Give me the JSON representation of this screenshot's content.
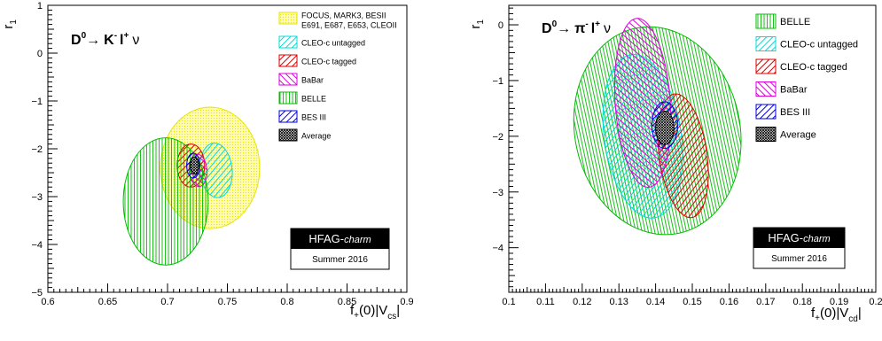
{
  "chart_data": [
    {
      "type": "contour",
      "title": "D⁰→ K⁻ l⁺ ν",
      "title_parts": {
        "d": "D",
        "d_sup": "0",
        "arrow": "→",
        "k": "K",
        "k_sup": "-",
        "l": "l",
        "l_sup": "+",
        "nu": "ν"
      },
      "xlabel": "f₊(0)|V_cs|",
      "xlabel_parts": {
        "main": "f",
        "sub": "+",
        "mid": "(0)|V",
        "sub2": "cs",
        "end": "|"
      },
      "ylabel": "r₁",
      "ylabel_parts": {
        "main": "r",
        "sub": "1"
      },
      "xlim": [
        0.6,
        0.9
      ],
      "ylim": [
        -5,
        1
      ],
      "xticks": [
        0.6,
        0.65,
        0.7,
        0.75,
        0.8,
        0.85,
        0.9
      ],
      "xtick_labels": [
        "0.6",
        "0.65",
        "0.7",
        "0.75",
        "0.8",
        "0.85",
        "0.9"
      ],
      "yticks": [
        -5,
        -4,
        -3,
        -2,
        -1,
        0,
        1
      ],
      "ytick_labels": [
        "−5",
        "−4",
        "−3",
        "−2",
        "−1",
        "0",
        "1"
      ],
      "grid": false,
      "legend_position": "top-right",
      "series": [
        {
          "name": "FOCUS, MARK3, BESII",
          "name2": "E691, E687, E653, CLEOII",
          "color": "#e6e600",
          "pattern": "dots",
          "ellipse": {
            "cx": 0.7355,
            "cy": -2.4,
            "rx": 0.0415,
            "ry": 1.27,
            "angle": 0
          }
        },
        {
          "name": "CLEO-c untagged",
          "color": "#00dddd",
          "pattern": "hatch45",
          "ellipse": {
            "cx": 0.7405,
            "cy": -2.45,
            "rx": 0.0135,
            "ry": 0.57,
            "angle": -5
          }
        },
        {
          "name": "CLEO-c tagged",
          "color": "#dd0000",
          "pattern": "hatch45",
          "ellipse": {
            "cx": 0.7195,
            "cy": -2.35,
            "rx": 0.0115,
            "ry": 0.45,
            "angle": 0
          }
        },
        {
          "name": "BaBar",
          "color": "#dd00dd",
          "pattern": "hatch135",
          "ellipse": {
            "cx": 0.7255,
            "cy": -2.45,
            "rx": 0.0075,
            "ry": 0.34,
            "angle": -5
          }
        },
        {
          "name": "BELLE",
          "color": "#00bb00",
          "pattern": "vertical",
          "ellipse": {
            "cx": 0.6985,
            "cy": -3.1,
            "rx": 0.0355,
            "ry": 1.33,
            "angle": 0
          }
        },
        {
          "name": "BES III",
          "color": "#0000dd",
          "pattern": "hatch45",
          "ellipse": {
            "cx": 0.7215,
            "cy": -2.35,
            "rx": 0.0055,
            "ry": 0.26,
            "angle": 0
          }
        },
        {
          "name": "Average",
          "color": "#000000",
          "pattern": "cross",
          "ellipse": {
            "cx": 0.7225,
            "cy": -2.35,
            "rx": 0.0035,
            "ry": 0.18,
            "angle": 0
          }
        }
      ],
      "badge": {
        "title": "HFAG-",
        "title_italic": "charm",
        "subtitle": "Summer 2016"
      }
    },
    {
      "type": "contour",
      "title": "D⁰→ π⁻ l⁺ ν",
      "title_parts": {
        "d": "D",
        "d_sup": "0",
        "arrow": "→",
        "k": "π",
        "k_sup": "-",
        "l": "l",
        "l_sup": "+",
        "nu": "ν"
      },
      "xlabel": "f₊(0)|V_cd|",
      "xlabel_parts": {
        "main": "f",
        "sub": "+",
        "mid": "(0)|V",
        "sub2": "cd",
        "end": "|"
      },
      "ylabel": "r₁",
      "ylabel_parts": {
        "main": "r",
        "sub": "1"
      },
      "xlim": [
        0.1,
        0.2
      ],
      "ylim": [
        -4.8,
        0.35
      ],
      "xticks": [
        0.1,
        0.11,
        0.12,
        0.13,
        0.14,
        0.15,
        0.16,
        0.17,
        0.18,
        0.19,
        0.2
      ],
      "xtick_labels": [
        "0.1",
        "0.11",
        "0.12",
        "0.13",
        "0.14",
        "0.15",
        "0.16",
        "0.17",
        "0.18",
        "0.19",
        "0.2"
      ],
      "yticks": [
        -4,
        -3,
        -2,
        -1,
        0
      ],
      "ytick_labels": [
        "−4",
        "−3",
        "−2",
        "−1",
        "0"
      ],
      "grid": false,
      "legend_position": "top-right",
      "series": [
        {
          "name": "BELLE",
          "color": "#00bb00",
          "pattern": "vertical",
          "ellipse": {
            "cx": 0.1405,
            "cy": -1.9,
            "rx": 0.0225,
            "ry": 1.88,
            "angle": -12
          }
        },
        {
          "name": "CLEO-c untagged",
          "color": "#00dddd",
          "pattern": "hatch45",
          "ellipse": {
            "cx": 0.1365,
            "cy": -2.0,
            "rx": 0.0105,
            "ry": 1.48,
            "angle": -8
          }
        },
        {
          "name": "CLEO-c tagged",
          "color": "#dd0000",
          "pattern": "hatch45",
          "ellipse": {
            "cx": 0.1475,
            "cy": -2.35,
            "rx": 0.0065,
            "ry": 1.12,
            "angle": -8
          }
        },
        {
          "name": "BaBar",
          "color": "#dd00dd",
          "pattern": "hatch135",
          "ellipse": {
            "cx": 0.1365,
            "cy": -1.4,
            "rx": 0.0075,
            "ry": 1.52,
            "angle": -4
          }
        },
        {
          "name": "BES III",
          "color": "#0000dd",
          "pattern": "hatch45",
          "ellipse": {
            "cx": 0.1425,
            "cy": -1.8,
            "rx": 0.0035,
            "ry": 0.42,
            "angle": 0
          }
        },
        {
          "name": "Average",
          "color": "#000000",
          "pattern": "cross",
          "ellipse": {
            "cx": 0.1425,
            "cy": -1.85,
            "rx": 0.0025,
            "ry": 0.3,
            "angle": 0
          }
        }
      ],
      "badge": {
        "title": "HFAG-",
        "title_italic": "charm",
        "subtitle": "Summer 2016"
      }
    }
  ]
}
